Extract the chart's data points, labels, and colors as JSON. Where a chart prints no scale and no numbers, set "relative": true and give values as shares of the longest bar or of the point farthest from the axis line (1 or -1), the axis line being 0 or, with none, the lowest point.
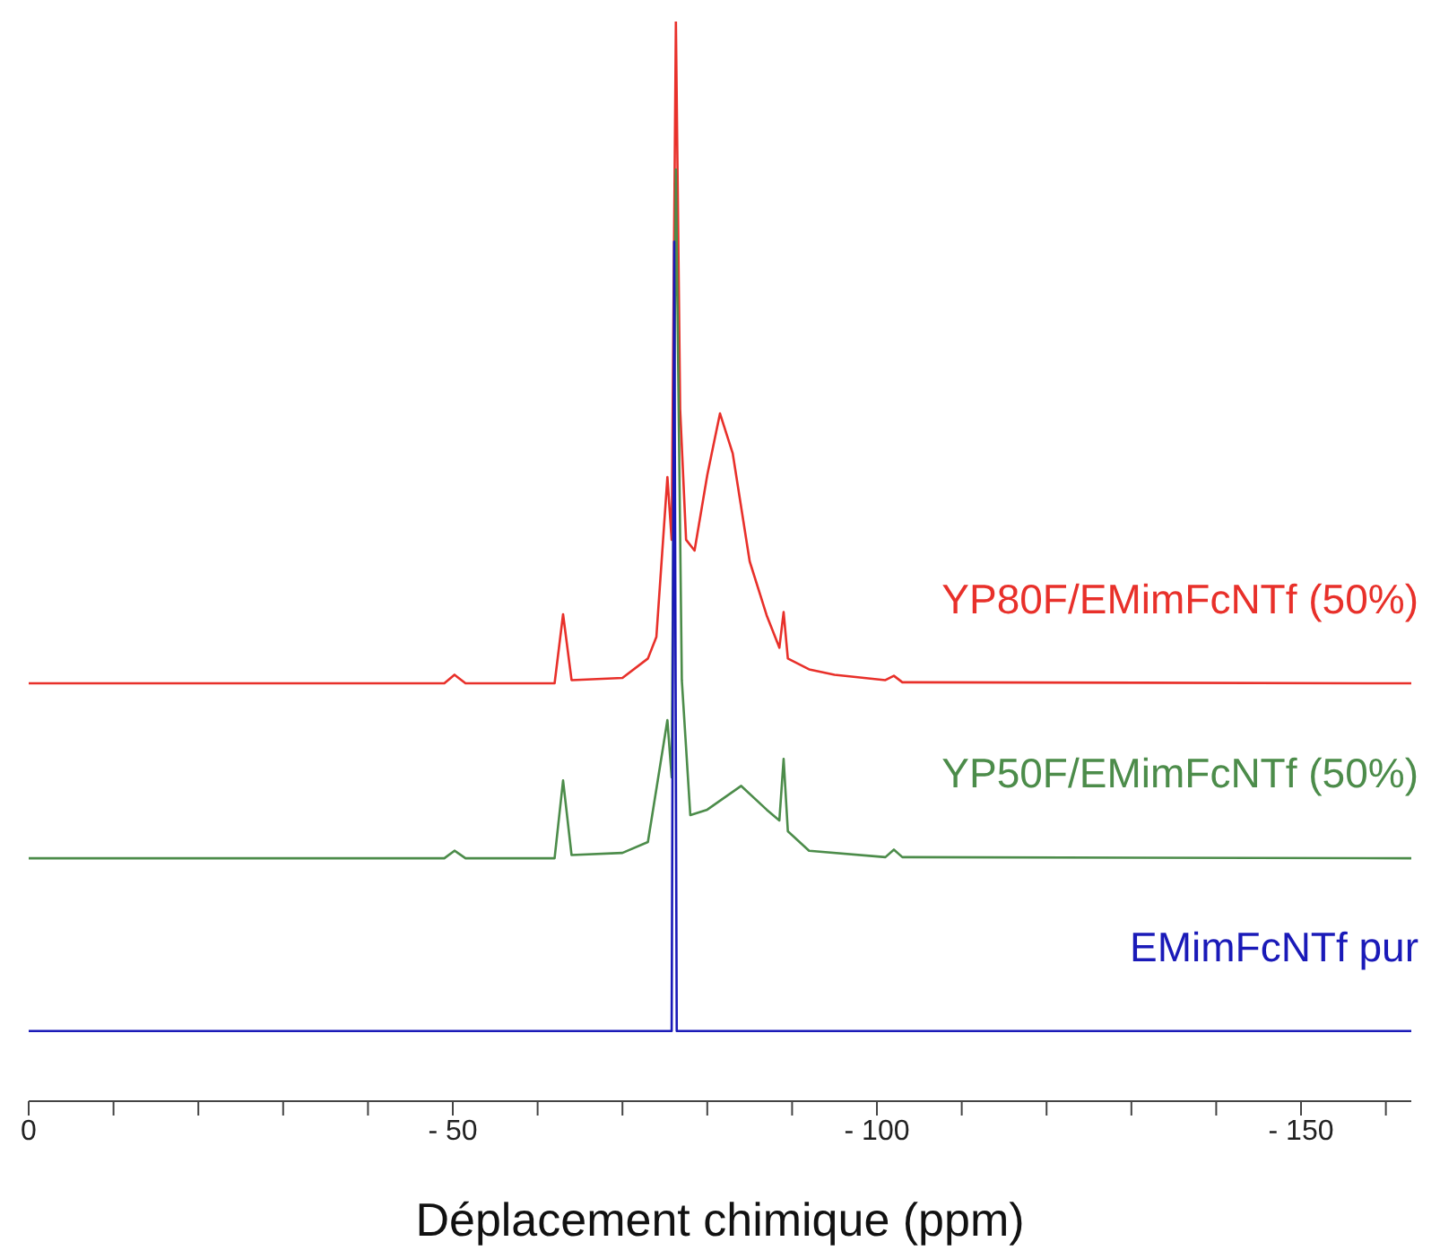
{
  "chart_data": {
    "type": "line",
    "relative": true,
    "xlabel": "Déplacement chimique (ppm)",
    "xlim": [
      0,
      -163
    ],
    "xticks": [
      0,
      {
        "value": -10,
        "label": null
      },
      {
        "value": -20,
        "label": null
      },
      {
        "value": -30,
        "label": null
      },
      {
        "value": -40,
        "label": null
      },
      {
        "value": -50,
        "label": "- 50"
      },
      {
        "value": -60,
        "label": null
      },
      {
        "value": -70,
        "label": null
      },
      {
        "value": -80,
        "label": null
      },
      {
        "value": -90,
        "label": null
      },
      {
        "value": -100,
        "label": "- 100"
      },
      {
        "value": -110,
        "label": null
      },
      {
        "value": -120,
        "label": null
      },
      {
        "value": -130,
        "label": null
      },
      {
        "value": -140,
        "label": null
      },
      {
        "value": -150,
        "label": "- 150"
      },
      {
        "value": -160,
        "label": null
      }
    ],
    "marker": "none",
    "line_style": "solid",
    "series": [
      {
        "name": "YP80F/EMimFcNTf (50%)",
        "color": "#e8302a",
        "x": [
          0,
          -49,
          -50.2,
          -51.5,
          -62,
          -63,
          -64,
          -70,
          -73,
          -74,
          -75.3,
          -75.8,
          -76.3,
          -76.8,
          -77.5,
          -78.5,
          -80,
          -81.5,
          -83,
          -85,
          -87,
          -88.5,
          -89,
          -89.5,
          -92,
          -95,
          -101,
          -102,
          -103,
          -163
        ],
        "values": [
          0.387,
          0.387,
          0.395,
          0.387,
          0.387,
          0.451,
          0.39,
          0.392,
          0.41,
          0.43,
          0.578,
          0.52,
          1,
          0.641,
          0.52,
          0.51,
          0.58,
          0.637,
          0.6,
          0.5,
          0.45,
          0.42,
          0.453,
          0.41,
          0.4,
          0.395,
          0.39,
          0.394,
          0.388,
          0.387
        ]
      },
      {
        "name": "YP50F/EMimFcNTf (50%)",
        "color": "#4c8c4a",
        "x": [
          0,
          -49,
          -50.2,
          -51.5,
          -62,
          -63,
          -64,
          -70,
          -73,
          -75.3,
          -75.8,
          -76.3,
          -77,
          -78,
          -80,
          -84,
          -87,
          -88.5,
          -89,
          -89.5,
          -92,
          -101,
          -102,
          -103,
          -163
        ],
        "values": [
          0.225,
          0.225,
          0.232,
          0.225,
          0.225,
          0.297,
          0.228,
          0.23,
          0.24,
          0.353,
          0.3,
          0.863,
          0.39,
          0.265,
          0.27,
          0.292,
          0.27,
          0.26,
          0.317,
          0.25,
          0.232,
          0.226,
          0.233,
          0.226,
          0.225
        ]
      },
      {
        "name": "EMimFcNTf pur",
        "color": "#1a1ab8",
        "x": [
          0,
          -75.8,
          -76.1,
          -76.4,
          -163
        ],
        "values": [
          0.065,
          0.065,
          0.796,
          0.065,
          0.065
        ]
      }
    ]
  }
}
